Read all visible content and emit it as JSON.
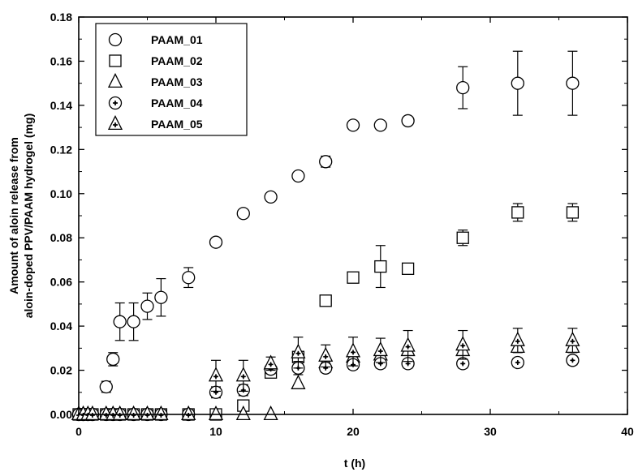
{
  "chart_data": {
    "type": "scatter",
    "xlabel": "t (h)",
    "ylabel_line1": "Amount of aloin release  from",
    "ylabel_line2": "aloin-doped PPV/PAAM hydrogel (mg)",
    "xlim": [
      0,
      40
    ],
    "ylim": [
      0,
      0.18
    ],
    "xticks": [
      "0",
      "10",
      "20",
      "30",
      "40"
    ],
    "yticks": [
      "0.00",
      "0.02",
      "0.04",
      "0.06",
      "0.08",
      "0.10",
      "0.12",
      "0.14",
      "0.16",
      "0.18"
    ],
    "grid": false,
    "legend_position": "top-left",
    "error_bars": true,
    "series": [
      {
        "name": "PAAM_01",
        "marker": "circle",
        "points": [
          {
            "x": 0,
            "y": 0,
            "err": 0
          },
          {
            "x": 0.33,
            "y": 0,
            "err": 0
          },
          {
            "x": 0.67,
            "y": 0,
            "err": 0
          },
          {
            "x": 1,
            "y": 0,
            "err": 0
          },
          {
            "x": 2,
            "y": 0.0125,
            "err": 0.0025
          },
          {
            "x": 2.5,
            "y": 0.025,
            "err": 0.003
          },
          {
            "x": 3,
            "y": 0.042,
            "err": 0.0085
          },
          {
            "x": 4,
            "y": 0.042,
            "err": 0.0085
          },
          {
            "x": 5,
            "y": 0.049,
            "err": 0.006
          },
          {
            "x": 6,
            "y": 0.053,
            "err": 0.0085
          },
          {
            "x": 8,
            "y": 0.062,
            "err": 0.0045
          },
          {
            "x": 10,
            "y": 0.078,
            "err": 0
          },
          {
            "x": 12,
            "y": 0.091,
            "err": 0
          },
          {
            "x": 14,
            "y": 0.0985,
            "err": 0
          },
          {
            "x": 16,
            "y": 0.108,
            "err": 0
          },
          {
            "x": 18,
            "y": 0.1145,
            "err": 0.0025
          },
          {
            "x": 20,
            "y": 0.131,
            "err": 0
          },
          {
            "x": 22,
            "y": 0.131,
            "err": 0
          },
          {
            "x": 24,
            "y": 0.133,
            "err": 0
          },
          {
            "x": 28,
            "y": 0.148,
            "err": 0.0095
          },
          {
            "x": 32,
            "y": 0.15,
            "err": 0.0145
          },
          {
            "x": 36,
            "y": 0.15,
            "err": 0.0145
          }
        ]
      },
      {
        "name": "PAAM_02",
        "marker": "square",
        "points": [
          {
            "x": 0,
            "y": 0,
            "err": 0
          },
          {
            "x": 0.33,
            "y": 0,
            "err": 0
          },
          {
            "x": 0.67,
            "y": 0,
            "err": 0
          },
          {
            "x": 1,
            "y": 0,
            "err": 0
          },
          {
            "x": 2,
            "y": 0,
            "err": 0
          },
          {
            "x": 2.5,
            "y": 0,
            "err": 0
          },
          {
            "x": 3,
            "y": 0,
            "err": 0
          },
          {
            "x": 4,
            "y": 0,
            "err": 0
          },
          {
            "x": 5,
            "y": 0,
            "err": 0
          },
          {
            "x": 6,
            "y": 0,
            "err": 0
          },
          {
            "x": 8,
            "y": 0,
            "err": 0
          },
          {
            "x": 10,
            "y": 0,
            "err": 0
          },
          {
            "x": 12,
            "y": 0.004,
            "err": 0
          },
          {
            "x": 14,
            "y": 0.019,
            "err": 0
          },
          {
            "x": 16,
            "y": 0.026,
            "err": 0
          },
          {
            "x": 18,
            "y": 0.0515,
            "err": 0
          },
          {
            "x": 20,
            "y": 0.062,
            "err": 0.002
          },
          {
            "x": 22,
            "y": 0.067,
            "err": 0.0095
          },
          {
            "x": 24,
            "y": 0.066,
            "err": 0.002
          },
          {
            "x": 28,
            "y": 0.08,
            "err": 0.0035
          },
          {
            "x": 32,
            "y": 0.0915,
            "err": 0.004
          },
          {
            "x": 36,
            "y": 0.0915,
            "err": 0.004
          }
        ]
      },
      {
        "name": "PAAM_03",
        "marker": "triangle",
        "points": [
          {
            "x": 0,
            "y": 0,
            "err": 0
          },
          {
            "x": 0.33,
            "y": 0,
            "err": 0
          },
          {
            "x": 0.67,
            "y": 0,
            "err": 0
          },
          {
            "x": 1,
            "y": 0,
            "err": 0
          },
          {
            "x": 2,
            "y": 0,
            "err": 0
          },
          {
            "x": 2.5,
            "y": 0,
            "err": 0
          },
          {
            "x": 3,
            "y": 0,
            "err": 0
          },
          {
            "x": 4,
            "y": 0,
            "err": 0
          },
          {
            "x": 5,
            "y": 0,
            "err": 0
          },
          {
            "x": 6,
            "y": 0,
            "err": 0
          },
          {
            "x": 8,
            "y": 0,
            "err": 0
          },
          {
            "x": 10,
            "y": 0,
            "err": 0
          },
          {
            "x": 12,
            "y": 0,
            "err": 0
          },
          {
            "x": 14,
            "y": 0,
            "err": 0
          },
          {
            "x": 16,
            "y": 0.014,
            "err": 0
          },
          {
            "x": 18,
            "y": 0.0235,
            "err": 0
          },
          {
            "x": 20,
            "y": 0.026,
            "err": 0
          },
          {
            "x": 22,
            "y": 0.027,
            "err": 0
          },
          {
            "x": 24,
            "y": 0.029,
            "err": 0
          },
          {
            "x": 28,
            "y": 0.029,
            "err": 0
          },
          {
            "x": 32,
            "y": 0.0305,
            "err": 0
          },
          {
            "x": 36,
            "y": 0.0305,
            "err": 0
          }
        ]
      },
      {
        "name": "PAAM_04",
        "marker": "circle-dot",
        "points": [
          {
            "x": 0,
            "y": 0,
            "err": 0
          },
          {
            "x": 0.33,
            "y": 0,
            "err": 0
          },
          {
            "x": 0.67,
            "y": 0,
            "err": 0
          },
          {
            "x": 1,
            "y": 0,
            "err": 0
          },
          {
            "x": 2,
            "y": 0,
            "err": 0
          },
          {
            "x": 2.5,
            "y": 0,
            "err": 0
          },
          {
            "x": 3,
            "y": 0,
            "err": 0
          },
          {
            "x": 4,
            "y": 0,
            "err": 0
          },
          {
            "x": 5,
            "y": 0,
            "err": 0
          },
          {
            "x": 6,
            "y": 0,
            "err": 0
          },
          {
            "x": 8,
            "y": 0,
            "err": 0
          },
          {
            "x": 10,
            "y": 0.01,
            "err": 0.0025
          },
          {
            "x": 12,
            "y": 0.011,
            "err": 0.0025
          },
          {
            "x": 14,
            "y": 0.0205,
            "err": 0.002
          },
          {
            "x": 16,
            "y": 0.021,
            "err": 0.003
          },
          {
            "x": 18,
            "y": 0.021,
            "err": 0.002
          },
          {
            "x": 20,
            "y": 0.0225,
            "err": 0.002
          },
          {
            "x": 22,
            "y": 0.023,
            "err": 0.002
          },
          {
            "x": 24,
            "y": 0.023,
            "err": 0.002
          },
          {
            "x": 28,
            "y": 0.023,
            "err": 0.002
          },
          {
            "x": 32,
            "y": 0.0235,
            "err": 0.002
          },
          {
            "x": 36,
            "y": 0.0245,
            "err": 0.002
          }
        ]
      },
      {
        "name": "PAAM_05",
        "marker": "triangle-dot",
        "points": [
          {
            "x": 0,
            "y": 0,
            "err": 0
          },
          {
            "x": 0.33,
            "y": 0,
            "err": 0
          },
          {
            "x": 0.67,
            "y": 0,
            "err": 0
          },
          {
            "x": 1,
            "y": 0,
            "err": 0
          },
          {
            "x": 2,
            "y": 0,
            "err": 0
          },
          {
            "x": 2.5,
            "y": 0,
            "err": 0
          },
          {
            "x": 3,
            "y": 0,
            "err": 0
          },
          {
            "x": 4,
            "y": 0,
            "err": 0
          },
          {
            "x": 5,
            "y": 0,
            "err": 0
          },
          {
            "x": 6,
            "y": 0,
            "err": 0
          },
          {
            "x": 8,
            "y": 0,
            "err": 0
          },
          {
            "x": 10,
            "y": 0.0175,
            "err": 0.007
          },
          {
            "x": 12,
            "y": 0.0175,
            "err": 0.007
          },
          {
            "x": 14,
            "y": 0.023,
            "err": 0.003
          },
          {
            "x": 16,
            "y": 0.028,
            "err": 0.007
          },
          {
            "x": 18,
            "y": 0.0265,
            "err": 0.005
          },
          {
            "x": 20,
            "y": 0.0285,
            "err": 0.0065
          },
          {
            "x": 22,
            "y": 0.029,
            "err": 0.0055
          },
          {
            "x": 24,
            "y": 0.031,
            "err": 0.007
          },
          {
            "x": 28,
            "y": 0.0315,
            "err": 0.0065
          },
          {
            "x": 32,
            "y": 0.0335,
            "err": 0.0055
          },
          {
            "x": 36,
            "y": 0.0335,
            "err": 0.0055
          }
        ]
      }
    ]
  }
}
